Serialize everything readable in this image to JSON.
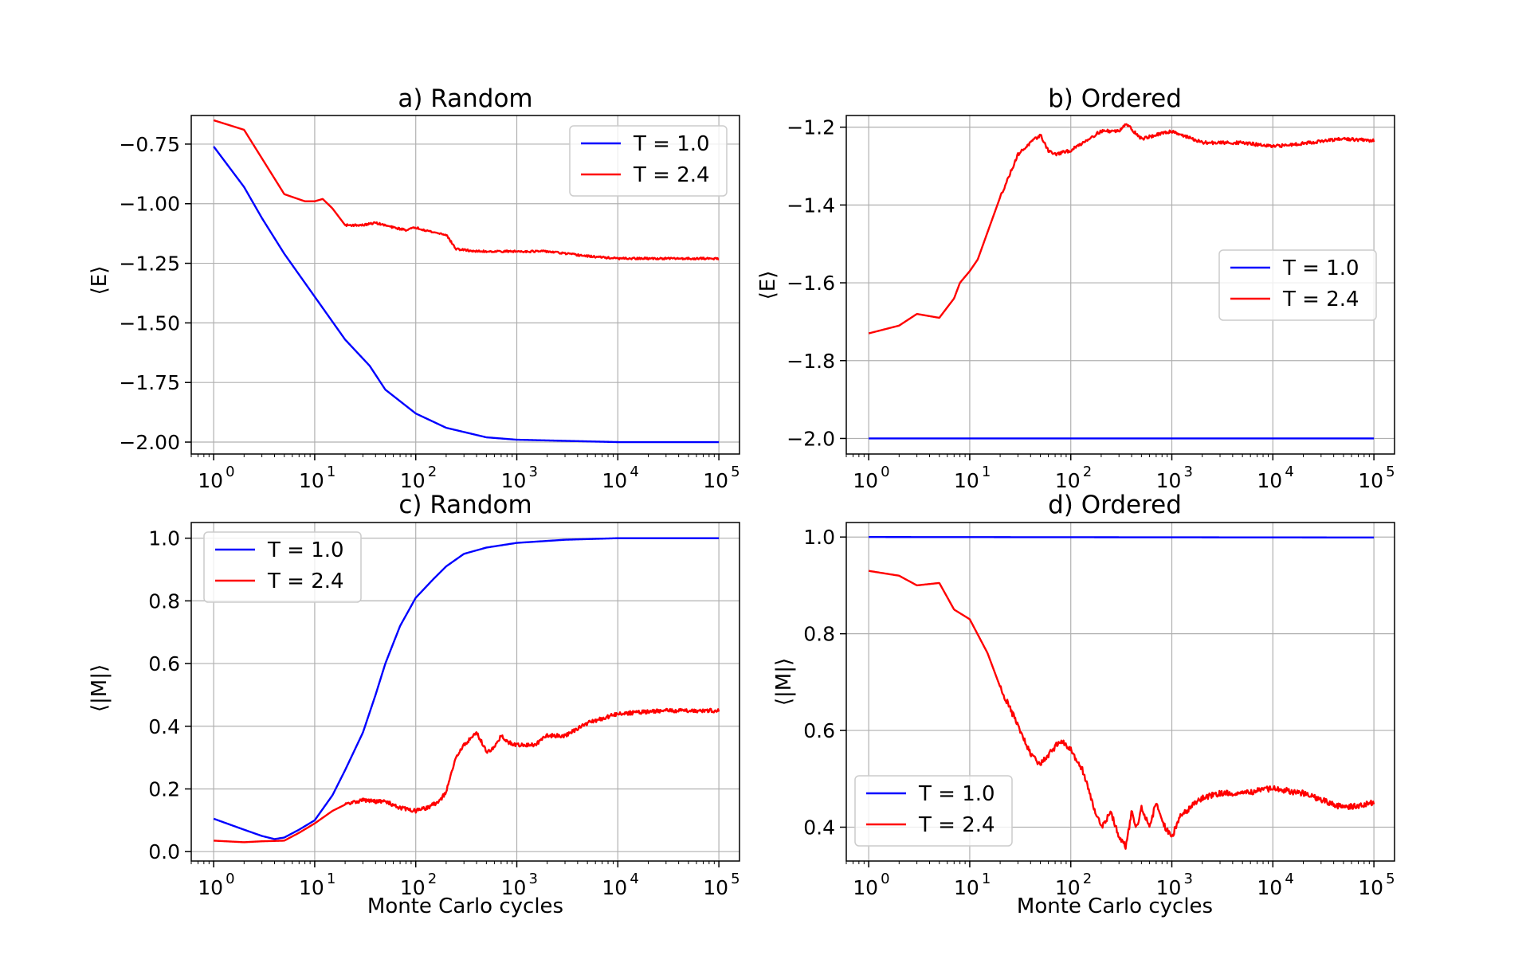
{
  "figure": {
    "x_axis_label": "Monte Carlo cycles",
    "colors": {
      "T1": "#0000ff",
      "T24": "#ff0000",
      "grid": "#b0b0b0"
    }
  },
  "chart_data": [
    {
      "type": "line",
      "title": "a) Random",
      "xlabel": "",
      "ylabel": "⟨E⟩",
      "xscale": "log",
      "xlim": [
        0.6,
        160000
      ],
      "ylim": [
        -2.05,
        -0.63
      ],
      "x_tick_labels": [
        "10",
        "10",
        "10",
        "10",
        "10",
        "10"
      ],
      "x_tick_exponents": [
        "0",
        "1",
        "2",
        "3",
        "4",
        "5"
      ],
      "y_ticks": [
        -0.75,
        -1.0,
        -1.25,
        -1.5,
        -1.75,
        -2.0
      ],
      "y_tick_labels": [
        "−0.75",
        "−1.00",
        "−1.25",
        "−1.50",
        "−1.75",
        "−2.00"
      ],
      "grid": true,
      "legend_position": "top-right",
      "series": [
        {
          "name": "T = 1.0",
          "color": "#0000ff",
          "noise": 0,
          "x": [
            1,
            2,
            3,
            5,
            10,
            20,
            35,
            50,
            100,
            200,
            500,
            1000,
            10000,
            100000
          ],
          "y": [
            -0.76,
            -0.93,
            -1.06,
            -1.21,
            -1.39,
            -1.57,
            -1.68,
            -1.78,
            -1.88,
            -1.94,
            -1.98,
            -1.99,
            -2.0,
            -2.0
          ]
        },
        {
          "name": "T = 2.4",
          "color": "#ff0000",
          "noise": 0.004,
          "x": [
            1,
            2,
            5,
            8,
            10,
            12,
            15,
            20,
            30,
            40,
            60,
            80,
            100,
            150,
            200,
            250,
            400,
            1000,
            2000,
            5000,
            10000,
            100000
          ],
          "y": [
            -0.65,
            -0.69,
            -0.96,
            -0.99,
            -0.99,
            -0.98,
            -1.02,
            -1.09,
            -1.09,
            -1.08,
            -1.1,
            -1.11,
            -1.1,
            -1.12,
            -1.13,
            -1.19,
            -1.2,
            -1.2,
            -1.2,
            -1.22,
            -1.23,
            -1.23
          ]
        }
      ]
    },
    {
      "type": "line",
      "title": "b) Ordered",
      "xlabel": "",
      "ylabel": "⟨E⟩",
      "xscale": "log",
      "xlim": [
        0.6,
        160000
      ],
      "ylim": [
        -2.04,
        -1.17
      ],
      "x_tick_labels": [
        "10",
        "10",
        "10",
        "10",
        "10",
        "10"
      ],
      "x_tick_exponents": [
        "0",
        "1",
        "2",
        "3",
        "4",
        "5"
      ],
      "y_ticks": [
        -1.2,
        -1.4,
        -1.6,
        -1.8,
        -2.0
      ],
      "y_tick_labels": [
        "−1.2",
        "−1.4",
        "−1.6",
        "−1.8",
        "−2.0"
      ],
      "grid": true,
      "legend_position": "center-right",
      "series": [
        {
          "name": "T = 1.0",
          "color": "#0000ff",
          "noise": 0,
          "x": [
            1,
            100000
          ],
          "y": [
            -2.0,
            -2.0
          ]
        },
        {
          "name": "T = 2.4",
          "color": "#ff0000",
          "noise": 0.004,
          "x": [
            1,
            2,
            3,
            5,
            7,
            8,
            10,
            12,
            15,
            20,
            25,
            30,
            40,
            50,
            60,
            70,
            100,
            150,
            200,
            300,
            350,
            500,
            1000,
            2000,
            5000,
            10000,
            50000,
            100000
          ],
          "y": [
            -1.73,
            -1.71,
            -1.68,
            -1.69,
            -1.64,
            -1.6,
            -1.57,
            -1.54,
            -1.47,
            -1.38,
            -1.32,
            -1.27,
            -1.24,
            -1.22,
            -1.26,
            -1.27,
            -1.26,
            -1.23,
            -1.21,
            -1.21,
            -1.19,
            -1.23,
            -1.21,
            -1.24,
            -1.24,
            -1.25,
            -1.23,
            -1.235
          ]
        }
      ]
    },
    {
      "type": "line",
      "title": "c) Random",
      "xlabel": "Monte Carlo cycles",
      "ylabel": "⟨|M|⟩",
      "xscale": "log",
      "xlim": [
        0.6,
        160000
      ],
      "ylim": [
        -0.03,
        1.05
      ],
      "x_tick_labels": [
        "10",
        "10",
        "10",
        "10",
        "10",
        "10"
      ],
      "x_tick_exponents": [
        "0",
        "1",
        "2",
        "3",
        "4",
        "5"
      ],
      "y_ticks": [
        0.0,
        0.2,
        0.4,
        0.6,
        0.8,
        1.0
      ],
      "y_tick_labels": [
        "0.0",
        "0.2",
        "0.4",
        "0.6",
        "0.8",
        "1.0"
      ],
      "grid": true,
      "legend_position": "top-left",
      "series": [
        {
          "name": "T = 1.0",
          "color": "#0000ff",
          "noise": 0,
          "x": [
            1,
            2,
            3,
            4,
            5,
            7,
            10,
            15,
            20,
            30,
            40,
            50,
            70,
            100,
            150,
            200,
            300,
            500,
            1000,
            3000,
            10000,
            100000
          ],
          "y": [
            0.105,
            0.07,
            0.05,
            0.04,
            0.045,
            0.07,
            0.1,
            0.18,
            0.26,
            0.38,
            0.5,
            0.6,
            0.72,
            0.81,
            0.87,
            0.91,
            0.95,
            0.97,
            0.985,
            0.995,
            1.0,
            1.0
          ]
        },
        {
          "name": "T = 2.4",
          "color": "#ff0000",
          "noise": 0.006,
          "x": [
            1,
            2,
            3,
            5,
            7,
            10,
            15,
            20,
            30,
            40,
            50,
            70,
            100,
            130,
            170,
            200,
            250,
            300,
            400,
            500,
            600,
            700,
            800,
            1000,
            1500,
            2000,
            3000,
            5000,
            10000,
            30000,
            100000
          ],
          "y": [
            0.035,
            0.03,
            0.033,
            0.035,
            0.06,
            0.09,
            0.13,
            0.15,
            0.165,
            0.16,
            0.16,
            0.14,
            0.13,
            0.14,
            0.16,
            0.19,
            0.3,
            0.34,
            0.38,
            0.32,
            0.33,
            0.37,
            0.35,
            0.34,
            0.34,
            0.37,
            0.37,
            0.41,
            0.44,
            0.45,
            0.45
          ]
        }
      ]
    },
    {
      "type": "line",
      "title": "d) Ordered",
      "xlabel": "Monte Carlo cycles",
      "ylabel": "⟨|M|⟩",
      "xscale": "log",
      "xlim": [
        0.6,
        160000
      ],
      "ylim": [
        0.33,
        1.03
      ],
      "x_tick_labels": [
        "10",
        "10",
        "10",
        "10",
        "10",
        "10"
      ],
      "x_tick_exponents": [
        "0",
        "1",
        "2",
        "3",
        "4",
        "5"
      ],
      "y_ticks": [
        1.0,
        0.8,
        0.6,
        0.4
      ],
      "y_tick_labels": [
        "1.0",
        "0.8",
        "0.6",
        "0.4"
      ],
      "grid": true,
      "legend_position": "bottom-left",
      "series": [
        {
          "name": "T = 1.0",
          "color": "#0000ff",
          "noise": 0,
          "x": [
            1,
            100000
          ],
          "y": [
            1.0,
            0.999
          ]
        },
        {
          "name": "T = 2.4",
          "color": "#ff0000",
          "noise": 0.006,
          "x": [
            1,
            2,
            3,
            5,
            7,
            10,
            15,
            20,
            30,
            40,
            50,
            60,
            80,
            100,
            130,
            170,
            200,
            250,
            300,
            350,
            400,
            450,
            500,
            600,
            700,
            800,
            1000,
            1200,
            1500,
            2000,
            3000,
            5000,
            10000,
            20000,
            50000,
            100000
          ],
          "y": [
            0.93,
            0.92,
            0.9,
            0.905,
            0.85,
            0.83,
            0.76,
            0.69,
            0.61,
            0.55,
            0.53,
            0.55,
            0.58,
            0.56,
            0.52,
            0.44,
            0.4,
            0.43,
            0.38,
            0.36,
            0.43,
            0.4,
            0.44,
            0.4,
            0.45,
            0.41,
            0.38,
            0.42,
            0.44,
            0.46,
            0.47,
            0.47,
            0.48,
            0.47,
            0.44,
            0.45
          ]
        }
      ]
    }
  ]
}
